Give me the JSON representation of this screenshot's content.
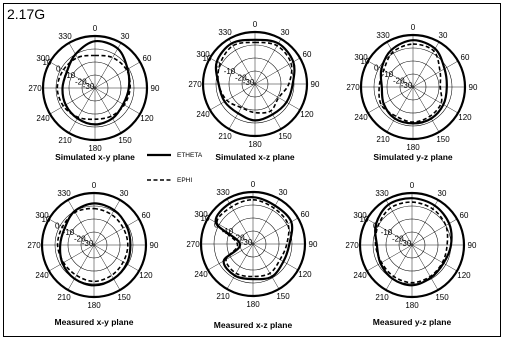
{
  "figure": {
    "frequency_label": "2.17G"
  },
  "legend": {
    "solid_label": "ETHETA",
    "dashed_label": "EPHI"
  },
  "chart_data": [
    {
      "type": "polar",
      "title": "Simulated x-y plane",
      "angle_ticks": [
        "0",
        "30",
        "60",
        "90",
        "120",
        "150",
        "180",
        "210",
        "240",
        "270",
        "300",
        "330"
      ],
      "radial_labels": [
        "10",
        "0",
        "-10",
        "-20",
        "-30"
      ],
      "series": [
        {
          "name": "ETHETA",
          "angles_deg": [
            0,
            30,
            60,
            90,
            120,
            150,
            180,
            210,
            240,
            270,
            300,
            330
          ],
          "values_db": [
            6,
            5,
            -1,
            -4,
            -5,
            -3,
            -2,
            -3,
            -4,
            -5,
            -5,
            0
          ]
        },
        {
          "name": "EPHI",
          "angles_deg": [
            0,
            30,
            60,
            90,
            120,
            150,
            180,
            210,
            240,
            270,
            300,
            330
          ],
          "values_db": [
            -5,
            -3,
            -2,
            -3,
            -4,
            -5,
            -6,
            -4,
            -2,
            -1,
            -2,
            -3
          ]
        }
      ]
    },
    {
      "type": "polar",
      "title": "Simulated x-z plane",
      "angle_ticks": [
        "0",
        "30",
        "60",
        "90",
        "120",
        "150",
        "180",
        "210",
        "240",
        "270",
        "300",
        "330"
      ],
      "radial_labels": [
        "10",
        "0",
        "-10",
        "-20",
        "-30"
      ],
      "series": [
        {
          "name": "ETHETA",
          "angles_deg": [
            0,
            30,
            60,
            90,
            120,
            150,
            180,
            210,
            240,
            270,
            300,
            330
          ],
          "values_db": [
            4,
            6,
            4,
            -1,
            -2,
            -3,
            -2,
            -4,
            -3,
            -2,
            4,
            6
          ]
        },
        {
          "name": "EPHI",
          "angles_deg": [
            0,
            30,
            60,
            90,
            120,
            150,
            180,
            210,
            240,
            270,
            300,
            330
          ],
          "values_db": [
            2,
            4,
            2,
            -4,
            -9,
            -6,
            -8,
            -9,
            -5,
            -2,
            1,
            4
          ]
        }
      ]
    },
    {
      "type": "polar",
      "title": "Simulated y-z plane",
      "angle_ticks": [
        "0",
        "30",
        "60",
        "90",
        "120",
        "150",
        "180",
        "210",
        "240",
        "270",
        "300",
        "330"
      ],
      "radial_labels": [
        "10",
        "0",
        "-10",
        "-20",
        "-30"
      ],
      "series": [
        {
          "name": "ETHETA",
          "angles_deg": [
            0,
            30,
            60,
            90,
            120,
            150,
            180,
            210,
            240,
            270,
            300,
            330
          ],
          "values_db": [
            6,
            4,
            -2,
            -4,
            -3,
            -2,
            -2,
            -2,
            -4,
            -6,
            -2,
            3
          ]
        },
        {
          "name": "EPHI",
          "angles_deg": [
            0,
            30,
            60,
            90,
            120,
            150,
            180,
            210,
            240,
            270,
            300,
            330
          ],
          "values_db": [
            3,
            2,
            -6,
            -9,
            -5,
            -4,
            -3,
            -4,
            -2,
            -4,
            -4,
            1
          ]
        }
      ]
    },
    {
      "type": "polar",
      "title": "Measured x-y plane",
      "angle_ticks": [
        "0",
        "30",
        "60",
        "90",
        "120",
        "150",
        "180",
        "210",
        "240",
        "270",
        "300",
        "330"
      ],
      "radial_labels": [
        "10",
        "0",
        "-10",
        "-20",
        "-30"
      ],
      "series": [
        {
          "name": "ETHETA",
          "angles_deg": [
            0,
            30,
            60,
            90,
            120,
            150,
            180,
            210,
            240,
            270,
            300,
            330
          ],
          "values_db": [
            2,
            1,
            -1,
            -2,
            -1,
            0,
            1,
            0,
            -2,
            -4,
            -4,
            0
          ]
        },
        {
          "name": "EPHI",
          "angles_deg": [
            0,
            30,
            60,
            90,
            120,
            150,
            180,
            210,
            240,
            270,
            300,
            330
          ],
          "values_db": [
            -2,
            -3,
            -4,
            -4,
            -4,
            -3,
            -2,
            -3,
            -3,
            -2,
            -2,
            -1
          ]
        }
      ]
    },
    {
      "type": "polar",
      "title": "Measured x-z plane",
      "angle_ticks": [
        "0",
        "30",
        "60",
        "90",
        "120",
        "150",
        "180",
        "210",
        "240",
        "270",
        "300",
        "330"
      ],
      "radial_labels": [
        "10",
        "0",
        "-10",
        "-20",
        "-30"
      ],
      "series": [
        {
          "name": "ETHETA",
          "angles_deg": [
            0,
            30,
            60,
            90,
            120,
            150,
            180,
            210,
            240,
            270,
            300,
            330
          ],
          "values_db": [
            6,
            4,
            4,
            -2,
            -3,
            -1,
            -3,
            -2,
            -4,
            -20,
            3,
            6
          ]
        },
        {
          "name": "EPHI",
          "angles_deg": [
            0,
            30,
            60,
            90,
            120,
            150,
            180,
            210,
            240,
            270,
            300,
            330
          ],
          "values_db": [
            4,
            2,
            1,
            -4,
            -6,
            -4,
            -5,
            -4,
            -6,
            -18,
            2,
            3
          ]
        }
      ]
    },
    {
      "type": "polar",
      "title": "Measured y-z plane",
      "angle_ticks": [
        "0",
        "30",
        "60",
        "90",
        "120",
        "150",
        "180",
        "210",
        "240",
        "270",
        "300",
        "330"
      ],
      "radial_labels": [
        "10",
        "0",
        "-10",
        "-20",
        "-30"
      ],
      "series": [
        {
          "name": "ETHETA",
          "angles_deg": [
            0,
            30,
            60,
            90,
            120,
            150,
            180,
            210,
            240,
            270,
            300,
            330
          ],
          "values_db": [
            6,
            5,
            3,
            0,
            -2,
            -1,
            1,
            0,
            -2,
            -3,
            2,
            6
          ]
        },
        {
          "name": "EPHI",
          "angles_deg": [
            0,
            30,
            60,
            90,
            120,
            150,
            180,
            210,
            240,
            270,
            300,
            330
          ],
          "values_db": [
            3,
            2,
            0,
            -3,
            -3,
            -2,
            -1,
            -2,
            -3,
            -2,
            0,
            3
          ]
        }
      ]
    }
  ]
}
